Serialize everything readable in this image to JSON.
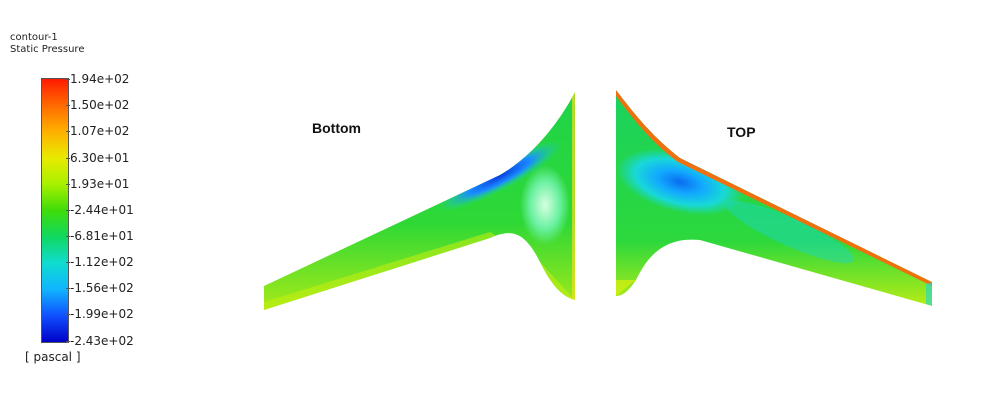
{
  "legend": {
    "title_line1": "contour-1",
    "title_line2": "Static Pressure",
    "unit": "[ pascal ]",
    "ticks": [
      "1.94e+02",
      "1.50e+02",
      "1.07e+02",
      "6.30e+01",
      "1.93e+01",
      "-2.44e+01",
      "-6.81e+01",
      "-1.12e+02",
      "-1.56e+02",
      "-1.99e+02",
      "-2.43e+02"
    ],
    "colors": [
      "#ff1a00",
      "#ff6a00",
      "#ffb000",
      "#e8ea00",
      "#a8f000",
      "#3fdc0a",
      "#10d860",
      "#10dcd0",
      "#10b4ff",
      "#1050ff",
      "#0000c8"
    ]
  },
  "views": {
    "bottom_label": "Bottom",
    "top_label": "TOP"
  }
}
